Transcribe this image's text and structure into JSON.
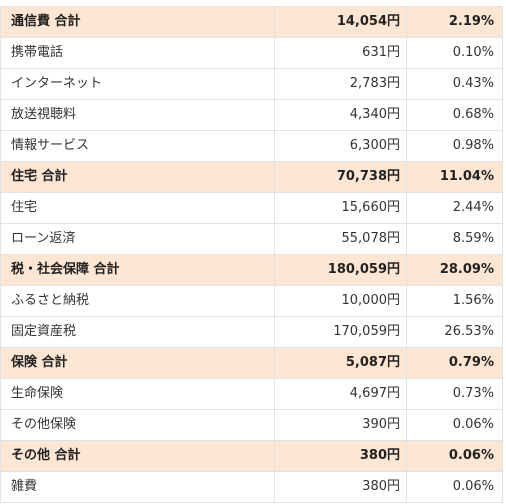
{
  "table": {
    "rows": [
      {
        "type": "total",
        "name": "通信費 合計",
        "amount": "14,054円",
        "pct": "2.19%"
      },
      {
        "type": "detail",
        "name": "携帯電話",
        "amount": "631円",
        "pct": "0.10%"
      },
      {
        "type": "detail",
        "name": "インターネット",
        "amount": "2,783円",
        "pct": "0.43%"
      },
      {
        "type": "detail",
        "name": "放送視聴料",
        "amount": "4,340円",
        "pct": "0.68%"
      },
      {
        "type": "detail",
        "name": "情報サービス",
        "amount": "6,300円",
        "pct": "0.98%"
      },
      {
        "type": "total",
        "name": "住宅 合計",
        "amount": "70,738円",
        "pct": "11.04%"
      },
      {
        "type": "detail",
        "name": "住宅",
        "amount": "15,660円",
        "pct": "2.44%"
      },
      {
        "type": "detail",
        "name": "ローン返済",
        "amount": "55,078円",
        "pct": "8.59%"
      },
      {
        "type": "total",
        "name": "税・社会保障 合計",
        "amount": "180,059円",
        "pct": "28.09%"
      },
      {
        "type": "detail",
        "name": "ふるさと納税",
        "amount": "10,000円",
        "pct": "1.56%"
      },
      {
        "type": "detail",
        "name": "固定資産税",
        "amount": "170,059円",
        "pct": "26.53%"
      },
      {
        "type": "total",
        "name": "保険 合計",
        "amount": "5,087円",
        "pct": "0.79%"
      },
      {
        "type": "detail",
        "name": "生命保険",
        "amount": "4,697円",
        "pct": "0.73%"
      },
      {
        "type": "detail",
        "name": "その他保険",
        "amount": "390円",
        "pct": "0.06%"
      },
      {
        "type": "total",
        "name": "その他 合計",
        "amount": "380円",
        "pct": "0.06%"
      },
      {
        "type": "detail",
        "name": "雑費",
        "amount": "380円",
        "pct": "0.06%"
      }
    ]
  }
}
